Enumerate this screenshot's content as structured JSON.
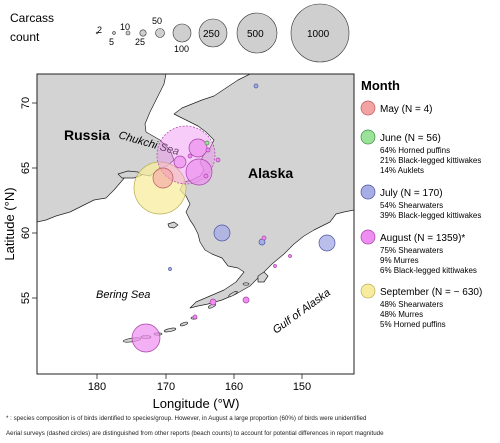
{
  "size_legend": {
    "title_line1": "Carcass",
    "title_line2": "count",
    "items": [
      {
        "value": 2,
        "label": "2"
      },
      {
        "value": 5,
        "label": "5"
      },
      {
        "value": 10,
        "label": "10"
      },
      {
        "value": 25,
        "label": "25"
      },
      {
        "value": 50,
        "label": "50"
      },
      {
        "value": 100,
        "label": "100"
      },
      {
        "value": 250,
        "label": "250"
      },
      {
        "value": 500,
        "label": "500"
      },
      {
        "value": 1000,
        "label": "1000"
      }
    ]
  },
  "map": {
    "region_labels": {
      "russia": "Russia",
      "alaska": "Alaska",
      "chukchi": "Chukchi Sea",
      "bering": "Bering Sea",
      "gulf": "Gulf of Alaska"
    },
    "x_axis": {
      "label": "Longitude (°W)",
      "ticks": [
        "180",
        "170",
        "160",
        "150"
      ]
    },
    "y_axis": {
      "label": "Latitude (°N)",
      "ticks": [
        "70",
        "65",
        "60",
        "55"
      ]
    },
    "colors": {
      "land": "#d3d3d3",
      "water": "#ffffff",
      "may": "#f4a3a3",
      "june": "#9be39b",
      "july": "#a7aee6",
      "august": "#ee8ef0",
      "september": "#f7ec9e"
    }
  },
  "month_legend": {
    "title": "Month",
    "entries": [
      {
        "key": "may",
        "title": "May (N = 4)",
        "lines": []
      },
      {
        "key": "june",
        "title": "June (N = 56)",
        "lines": [
          "64% Horned puffins",
          "21% Black-legged kittiwakes",
          "14% Auklets"
        ]
      },
      {
        "key": "july",
        "title": "July (N = 170)",
        "lines": [
          "54% Shearwaters",
          "39% Black-legged kittiwakes"
        ]
      },
      {
        "key": "august",
        "title": "August (N = 1359)*",
        "lines": [
          "75% Shearwaters",
          "9% Murres",
          "6% Black-legged kittiwakes"
        ]
      },
      {
        "key": "september",
        "title": "September (N = ~ 630)",
        "lines": [
          "48% Shearwaters",
          "48% Murres",
          "5% Horned puffins"
        ]
      }
    ]
  },
  "footnotes": {
    "line1": "* : species composition is of birds identified to species/group. However, in August a large proportion (60%) of birds were unidentified",
    "line2": "Aerial surveys (dashed circles) are distinguished from other reports (beach counts) to account for potential differences in report magnitude"
  }
}
